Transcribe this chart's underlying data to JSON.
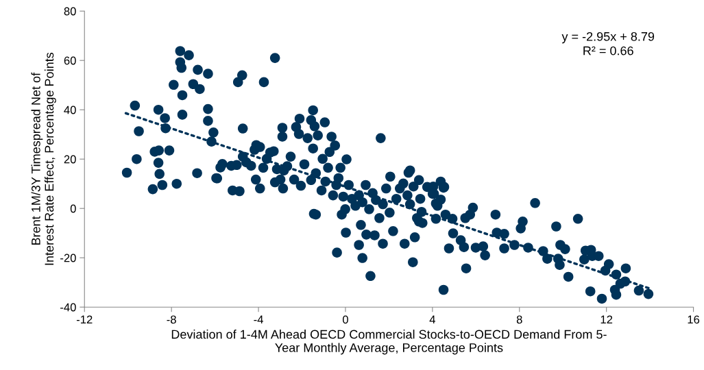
{
  "chart_data": {
    "type": "scatter",
    "xlabel": "Deviation of 1-4M Ahead OECD Commercial Stocks-to-OECD Demand From 5-\nYear Monthly Average, Percentage Points",
    "ylabel": "Brent 1M/3Y Timespread Net of\nInterest Rate Effect, Percentage Points",
    "annotations": [
      "y = -2.95x + 8.79\nR² = 0.66"
    ],
    "xlim": [
      -12,
      16
    ],
    "xticks": [
      -12,
      -8,
      -4,
      0,
      4,
      8,
      12,
      16
    ],
    "ylim": [
      -40,
      80
    ],
    "yticks": [
      -40,
      -20,
      0,
      20,
      40,
      60,
      80
    ],
    "grid": false,
    "legend": false,
    "marker": "circle",
    "series": [
      {
        "color": "#003359",
        "x": [
          -10.05,
          -9.68,
          -9.6,
          -9.5,
          -8.86,
          -8.77,
          -8.6,
          -8.6,
          -8.58,
          -8.42,
          -8.27,
          -8.3,
          -8.1,
          -8.55,
          -7.9,
          -7.76,
          -7.6,
          -7.6,
          -7.54,
          -7.5,
          -7.5,
          -7.2,
          -7.0,
          -6.82,
          -6.79,
          -6.7,
          -6.32,
          -6.32,
          -6.32,
          -6.16,
          -6.07,
          -5.94,
          -5.75,
          -5.66,
          -5.25,
          -5.0,
          -5.9,
          -4.72,
          -3.75,
          -4.75,
          -4.94,
          -3.24,
          -2.9,
          -2.9,
          -5.19,
          -4.87,
          -3.93,
          -4.12,
          -4.72,
          -4.56,
          -4.34,
          -4.18,
          -4.1,
          -3.93,
          -3.78,
          -3.62,
          -3.46,
          -3.3,
          -3.15,
          -3.24,
          -2.99,
          -2.87,
          -2.83,
          -2.68,
          -2.52,
          -2.36,
          -2.27,
          -2.14,
          -2.05,
          -1.89,
          -1.74,
          -1.58,
          -1.49,
          -1.36,
          -1.27,
          -1.1,
          -1.05,
          -0.92,
          -0.8,
          -0.64,
          -0.57,
          -0.48,
          -0.42,
          -0.32,
          -0.23,
          -0.17,
          -0.1,
          -0.01,
          0.05,
          0.15,
          -1.49,
          -1.42,
          -1.58,
          -1.36,
          -0.95,
          -0.73,
          -2.11,
          1.62,
          -1.45,
          0.02,
          -0.39,
          0.78,
          1.15,
          0.62,
          0.96,
          1.34,
          1.72,
          2.19,
          2.72,
          3.19,
          3.1,
          0.71,
          2.9,
          2.06,
          3.38,
          0.3,
          0.46,
          0.62,
          0.78,
          0.93,
          1.09,
          1.25,
          1.4,
          1.56,
          1.72,
          1.87,
          2.03,
          2.34,
          2.5,
          2.66,
          2.85,
          2.97,
          3.13,
          3.29,
          3.44,
          3.54,
          3.76,
          4.07,
          4.23,
          4.38,
          4.54,
          2.97,
          4.04,
          4.51,
          4.01,
          4.38,
          4.16,
          3.5,
          3.38,
          4.16,
          4.6,
          4.92,
          4.95,
          4.76,
          4.51,
          5.3,
          5.45,
          5.55,
          5.99,
          6.33,
          6.42,
          5.51,
          5.86,
          5.73,
          6.9,
          6.96,
          7.3,
          7.3,
          7.77,
          8.06,
          8.15,
          8.4,
          8.72,
          9.09,
          9.28,
          9.69,
          9.88,
          10.1,
          9.78,
          9.85,
          10.25,
          10.69,
          11.04,
          11.29,
          10.98,
          11.35,
          11.64,
          11.26,
          11.79,
          12.11,
          11.95,
          12.45,
          12.89,
          12.64,
          12.86,
          12.39,
          12.45,
          13.49,
          13.93
        ],
        "values": [
          14.5,
          41.7,
          20,
          31.3,
          7.8,
          23,
          40,
          18.5,
          23.5,
          9.5,
          32.5,
          36.6,
          23.5,
          14,
          50.1,
          10,
          63.8,
          59.3,
          57,
          45.9,
          38,
          62.1,
          50.4,
          14.3,
          56.2,
          48.4,
          54.6,
          40.3,
          35.5,
          27.1,
          30.8,
          12.3,
          16.6,
          18,
          17.3,
          17.6,
          12.2,
          32.4,
          51.2,
          54,
          51.2,
          61,
          32.7,
          29.1,
          7.3,
          7,
          8.1,
          11.7,
          21,
          18.7,
          17.3,
          23.8,
          25.7,
          24.9,
          16.5,
          20.1,
          22.7,
          23.2,
          15.9,
          10.6,
          11.7,
          8.1,
          15.4,
          17.1,
          21,
          11.7,
          33,
          30.2,
          9.2,
          17.9,
          28.5,
          35.8,
          24.3,
          14.3,
          29.6,
          7.3,
          20.1,
          10.9,
          16.5,
          29.1,
          5.3,
          25.5,
          9.5,
          12.3,
          16.5,
          -2.5,
          4.8,
          -0.3,
          19.9,
          9.5,
          39.8,
          33.3,
          11.5,
          -2.5,
          34.9,
          22.9,
          36.4,
          28.5,
          -2.2,
          -9.8,
          -17.9,
          -20.1,
          -27.4,
          -14.8,
          -10.6,
          -10.9,
          -14.3,
          -9.2,
          -14.3,
          -11.7,
          -21.8,
          -6.7,
          14.5,
          12.9,
          11.5,
          3.9,
          1.1,
          5.3,
          2.5,
          9.5,
          -0.3,
          6.2,
          3.4,
          -3.9,
          1.7,
          8.1,
          -1.7,
          3.9,
          8.1,
          10.1,
          5.3,
          1.7,
          8.9,
          -3.9,
          3.9,
          -5.9,
          8.7,
          5.9,
          1.1,
          10.9,
          8.7,
          15.4,
          8.9,
          8.4,
          5.9,
          3.6,
          2,
          -1.4,
          -5.3,
          -4.2,
          -2.5,
          -4.2,
          -10.1,
          -16.2,
          -33,
          -12.9,
          -15.7,
          -24.3,
          -15.9,
          -15.4,
          -19,
          -3.9,
          0.3,
          -2.5,
          -2.5,
          -9.8,
          -10.3,
          -16.2,
          -14.8,
          -8.1,
          -5.3,
          -15.9,
          2.2,
          -17.3,
          -20.4,
          -7.3,
          -14.8,
          -16.5,
          -20.4,
          -22.9,
          -27.7,
          -4.2,
          -17.1,
          -16.8,
          -20.7,
          -19.3,
          -19.3,
          -33.6,
          -36.6,
          -22.6,
          -25.2,
          -26.8,
          -24.3,
          -30.5,
          -29.6,
          -33,
          -35,
          -33.3,
          -34.7
        ]
      },
      {
        "type": "line",
        "color": "#003359",
        "line_style": "dotted",
        "marker": "none",
        "x": [
          -10.1,
          14
        ],
        "values": [
          38.6,
          -32.5
        ]
      }
    ]
  }
}
